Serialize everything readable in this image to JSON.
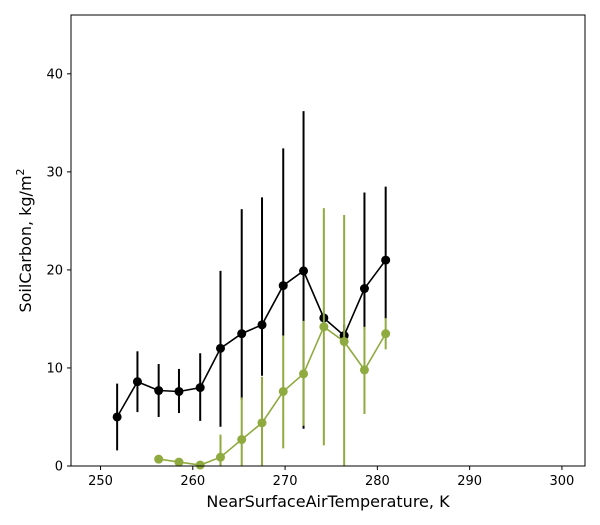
{
  "chart_data": {
    "type": "line",
    "title": "",
    "xlabel": "NearSurfaceAirTemperature,  K",
    "ylabel_main": "SoilCarbon,  kg/m",
    "ylabel_sup": "2",
    "xlim": [
      246.8,
      302.5
    ],
    "ylim": [
      0,
      46
    ],
    "xticks": [
      250,
      260,
      270,
      280,
      290,
      300
    ],
    "yticks": [
      0,
      10,
      20,
      30,
      40
    ],
    "grid": false,
    "series": [
      {
        "color": "#000000",
        "points": [
          {
            "x": 251.8,
            "y": 5.0,
            "lo": 1.6,
            "hi": 8.4
          },
          {
            "x": 254.0,
            "y": 8.6,
            "lo": 5.5,
            "hi": 11.7
          },
          {
            "x": 256.3,
            "y": 7.7,
            "lo": 5.0,
            "hi": 10.4
          },
          {
            "x": 258.5,
            "y": 7.6,
            "lo": 5.4,
            "hi": 9.9
          },
          {
            "x": 260.8,
            "y": 8.0,
            "lo": 4.6,
            "hi": 11.5
          },
          {
            "x": 263.0,
            "y": 12.0,
            "lo": 4.0,
            "hi": 19.9
          },
          {
            "x": 265.3,
            "y": 13.5,
            "lo": 6.8,
            "hi": 26.2
          },
          {
            "x": 267.5,
            "y": 14.4,
            "lo": 9.2,
            "hi": 27.4
          },
          {
            "x": 269.8,
            "y": 18.4,
            "lo": 13.3,
            "hi": 32.4
          },
          {
            "x": 272.0,
            "y": 19.9,
            "lo": 3.8,
            "hi": 36.2
          },
          {
            "x": 274.2,
            "y": 15.1,
            "lo": 14.5,
            "hi": 15.6
          },
          {
            "x": 276.4,
            "y": 13.3,
            "lo": 12.2,
            "hi": 14.4
          },
          {
            "x": 278.6,
            "y": 18.1,
            "lo": 14.0,
            "hi": 27.9
          },
          {
            "x": 280.9,
            "y": 21.0,
            "lo": 15.0,
            "hi": 28.5
          }
        ]
      },
      {
        "color": "#8faa3f",
        "points": [
          {
            "x": 256.3,
            "y": 0.7,
            "lo": 0.7,
            "hi": 0.7
          },
          {
            "x": 258.5,
            "y": 0.4,
            "lo": 0.4,
            "hi": 0.4
          },
          {
            "x": 260.8,
            "y": 0.1,
            "lo": 0.0,
            "hi": 0.2
          },
          {
            "x": 263.0,
            "y": 0.9,
            "lo": 0.0,
            "hi": 3.2
          },
          {
            "x": 265.3,
            "y": 2.7,
            "lo": 0.0,
            "hi": 7.0
          },
          {
            "x": 267.5,
            "y": 4.4,
            "lo": 0.0,
            "hi": 9.1
          },
          {
            "x": 269.8,
            "y": 7.6,
            "lo": 1.8,
            "hi": 13.3
          },
          {
            "x": 272.0,
            "y": 9.4,
            "lo": 4.1,
            "hi": 14.8
          },
          {
            "x": 274.2,
            "y": 14.2,
            "lo": 2.1,
            "hi": 26.3
          },
          {
            "x": 276.4,
            "y": 12.7,
            "lo": 0.0,
            "hi": 25.6
          },
          {
            "x": 278.6,
            "y": 9.8,
            "lo": 5.3,
            "hi": 14.2
          },
          {
            "x": 280.9,
            "y": 13.5,
            "lo": 11.9,
            "hi": 15.1
          }
        ]
      }
    ]
  }
}
